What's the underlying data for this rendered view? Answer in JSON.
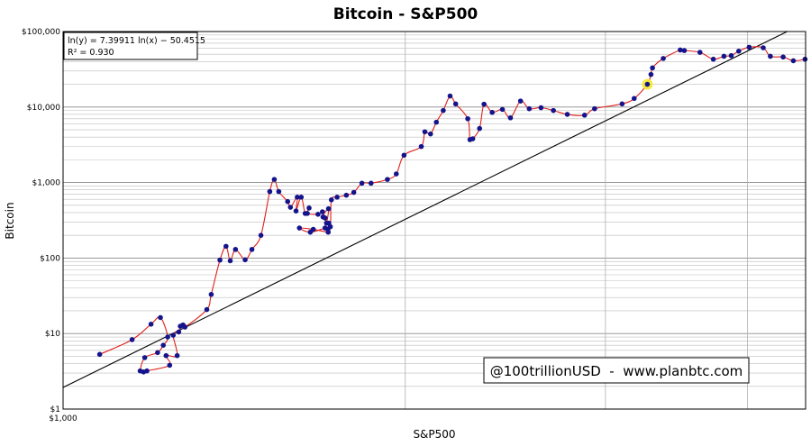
{
  "chart_data": {
    "type": "scatter",
    "title": "Bitcoin - S&P500",
    "xlabel": "S&P500",
    "ylabel": "Bitcoin",
    "x_scale": "log",
    "y_scale": "log",
    "xlim": [
      1000,
      4500
    ],
    "ylim": [
      1,
      100000
    ],
    "x_tick_labels": [
      "$1,000"
    ],
    "y_tick_labels": [
      "$100,000",
      "$10,000",
      "$1,000",
      "$100",
      "$10",
      "$1"
    ],
    "y_tick_values": [
      100000,
      10000,
      1000,
      100,
      10,
      1
    ],
    "grid": true,
    "fit": {
      "equation": "ln(y) = 7.39911 ln(x) − 50.4515",
      "r2": "R² = 0.930",
      "slope": 7.39911,
      "intercept": -50.4515
    },
    "watermark": "@100trillionUSD  -  www.planbtc.com",
    "points": [
      [
        1077,
        5.3
      ],
      [
        1150,
        8.3
      ],
      [
        1195,
        13.3
      ],
      [
        1218,
        16.3
      ],
      [
        1236,
        9
      ],
      [
        1225,
        7
      ],
      [
        1211,
        5.6
      ],
      [
        1180,
        4.8
      ],
      [
        1169,
        3.2
      ],
      [
        1177,
        3.1
      ],
      [
        1185,
        3.2
      ],
      [
        1241,
        3.8
      ],
      [
        1232,
        5.1
      ],
      [
        1260,
        5.1
      ],
      [
        1250,
        9.5
      ],
      [
        1264,
        10.5
      ],
      [
        1268,
        12.5
      ],
      [
        1275,
        13
      ],
      [
        1280,
        12.2
      ],
      [
        1338,
        20.8
      ],
      [
        1350,
        33
      ],
      [
        1374,
        94
      ],
      [
        1391,
        143
      ],
      [
        1403,
        92
      ],
      [
        1418,
        130
      ],
      [
        1446,
        95
      ],
      [
        1466,
        130
      ],
      [
        1493,
        200
      ],
      [
        1520,
        760
      ],
      [
        1534,
        1100
      ],
      [
        1548,
        760
      ],
      [
        1576,
        560
      ],
      [
        1585,
        470
      ],
      [
        1607,
        640
      ],
      [
        1603,
        420
      ],
      [
        1620,
        640
      ],
      [
        1633,
        390
      ],
      [
        1646,
        460
      ],
      [
        1640,
        390
      ],
      [
        1676,
        380
      ],
      [
        1691,
        410
      ],
      [
        1700,
        340
      ],
      [
        1705,
        290
      ],
      [
        1712,
        450
      ],
      [
        1693,
        350
      ],
      [
        1713,
        290
      ],
      [
        1718,
        260
      ],
      [
        1710,
        240
      ],
      [
        1711,
        220
      ],
      [
        1660,
        240
      ],
      [
        1614,
        250
      ],
      [
        1650,
        220
      ],
      [
        1700,
        250
      ],
      [
        1718,
        260
      ],
      [
        1722,
        590
      ],
      [
        1742,
        640
      ],
      [
        1775,
        680
      ],
      [
        1802,
        740
      ],
      [
        1832,
        980
      ],
      [
        1866,
        980
      ],
      [
        1929,
        1100
      ],
      [
        1964,
        1300
      ],
      [
        1995,
        2300
      ],
      [
        2066,
        3000
      ],
      [
        2081,
        4700
      ],
      [
        2105,
        4400
      ],
      [
        2130,
        6300
      ],
      [
        2160,
        9000
      ],
      [
        2190,
        14000
      ],
      [
        2215,
        11000
      ],
      [
        2270,
        7000
      ],
      [
        2280,
        3700
      ],
      [
        2293,
        3800
      ],
      [
        2325,
        5200
      ],
      [
        2346,
        10900
      ],
      [
        2385,
        8500
      ],
      [
        2435,
        9300
      ],
      [
        2475,
        7200
      ],
      [
        2526,
        12000
      ],
      [
        2571,
        9500
      ],
      [
        2633,
        9800
      ],
      [
        2700,
        9000
      ],
      [
        2777,
        8000
      ],
      [
        2876,
        7800
      ],
      [
        2935,
        9500
      ],
      [
        3103,
        11000
      ],
      [
        3180,
        13000
      ],
      [
        3266,
        20000
      ],
      [
        3290,
        27000
      ],
      [
        3300,
        33000
      ],
      [
        3373,
        44000
      ],
      [
        3491,
        57000
      ],
      [
        3520,
        56000
      ],
      [
        3633,
        53000
      ],
      [
        3733,
        43000
      ],
      [
        3814,
        47000
      ],
      [
        3871,
        48000
      ],
      [
        3930,
        55000
      ],
      [
        4014,
        62000
      ],
      [
        4130,
        61000
      ],
      [
        4190,
        47000
      ],
      [
        4300,
        46000
      ],
      [
        4390,
        41000
      ],
      [
        4495,
        43000
      ]
    ],
    "highlight_point": [
      3266,
      20000
    ]
  }
}
